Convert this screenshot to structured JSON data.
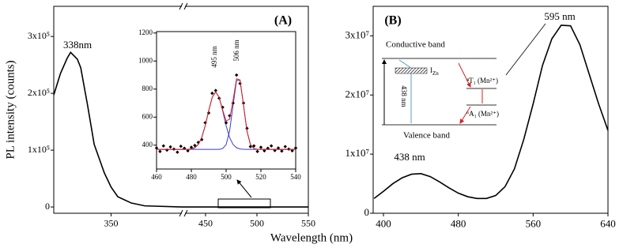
{
  "figure": {
    "y_label": "PL intensity (counts)",
    "x_label": "Wavelength (nm)"
  },
  "chart_data": [
    {
      "type": "line",
      "panel_label": "(A)",
      "xlim_segments": [
        [
          333,
          371
        ],
        [
          430,
          550
        ]
      ],
      "xticks": [
        350,
        450,
        500,
        550
      ],
      "ylim": [
        -11000,
        353000
      ],
      "yticks": [
        0,
        {
          "value": 100000,
          "label": "1x10⁵"
        },
        {
          "value": 200000,
          "label": "2x10⁵"
        },
        {
          "value": 300000,
          "label": "3x10⁵"
        }
      ],
      "annotations": [
        "338nm"
      ],
      "x": [
        333,
        335,
        337,
        338,
        340,
        341,
        343,
        345,
        348,
        350,
        352,
        356,
        360,
        371,
        430,
        450,
        480,
        500,
        520,
        550
      ],
      "values": [
        197000,
        235000,
        262000,
        272000,
        260000,
        245000,
        180000,
        110000,
        60000,
        35000,
        18000,
        7000,
        2000,
        0,
        0,
        0,
        0,
        0,
        0,
        0
      ],
      "color": "#000000"
    },
    {
      "type": "line",
      "xlim": [
        460,
        540
      ],
      "xticks": [
        460,
        480,
        500,
        520,
        540
      ],
      "ylim": [
        230,
        1210
      ],
      "yticks": [
        400,
        600,
        800,
        1000,
        1200
      ],
      "annotations": [
        "495 nm",
        "506 nm"
      ],
      "x": [
        460,
        462,
        464,
        466,
        468,
        470,
        472,
        474,
        476,
        478,
        480,
        482,
        484,
        486,
        488,
        490,
        492,
        494,
        496,
        498,
        500,
        502,
        504,
        506,
        508,
        510,
        512,
        514,
        516,
        518,
        520,
        522,
        524,
        526,
        528,
        530,
        532,
        534,
        536,
        538,
        540
      ],
      "series": [
        {
          "style": "line",
          "color": "#3a3ad0",
          "values": [
            370,
            370,
            370,
            370,
            370,
            370,
            370,
            370,
            370,
            371,
            373,
            382,
            405,
            455,
            539,
            646,
            741,
            780,
            741,
            646,
            539,
            455,
            405,
            382,
            373,
            371,
            370,
            370,
            370,
            370,
            370,
            370,
            370,
            370,
            370,
            370,
            370,
            370,
            370,
            370,
            370
          ]
        },
        {
          "style": "line",
          "color": "#3a3ad0",
          "values": [
            370,
            370,
            370,
            370,
            370,
            370,
            370,
            370,
            370,
            370,
            370,
            370,
            370,
            370,
            370,
            370,
            370,
            370,
            370,
            376,
            404,
            500,
            685,
            862,
            862,
            685,
            500,
            404,
            376,
            371,
            370,
            370,
            370,
            370,
            370,
            370,
            370,
            370,
            370,
            370,
            370
          ]
        },
        {
          "style": "points",
          "color": "#000000",
          "values": [
            380,
            355,
            395,
            365,
            388,
            372,
            350,
            392,
            378,
            360,
            385,
            398,
            420,
            440,
            560,
            630,
            770,
            790,
            735,
            670,
            560,
            610,
            700,
            900,
            840,
            700,
            520,
            390,
            395,
            355,
            385,
            360,
            378,
            395,
            362,
            380,
            358,
            390,
            372,
            360,
            380
          ]
        },
        {
          "style": "line",
          "color": "#d62020",
          "values": [
            370,
            370,
            370,
            370,
            370,
            370,
            370,
            370,
            370,
            371,
            373,
            382,
            405,
            455,
            539,
            646,
            741,
            780,
            742,
            652,
            573,
            585,
            720,
            874,
            865,
            686,
            500,
            404,
            376,
            371,
            370,
            370,
            370,
            370,
            370,
            370,
            370,
            370,
            370,
            370,
            370
          ]
        }
      ]
    },
    {
      "type": "line",
      "panel_label": "(B)",
      "xlim": [
        389,
        640
      ],
      "xticks": [
        400,
        480,
        560,
        640
      ],
      "ylim": [
        0,
        35000000
      ],
      "yticks": [
        0,
        {
          "value": 10000000,
          "label": "1x10⁷"
        },
        {
          "value": 20000000,
          "label": "2x10⁷"
        },
        {
          "value": 30000000,
          "label": "3x10⁷"
        }
      ],
      "annotations": [
        "438 nm",
        "595 nm"
      ],
      "x": [
        390,
        400,
        410,
        420,
        430,
        440,
        450,
        460,
        470,
        480,
        490,
        500,
        510,
        520,
        530,
        540,
        550,
        560,
        570,
        580,
        590,
        600,
        610,
        620,
        630,
        640
      ],
      "values": [
        2500000,
        3700000,
        5000000,
        6000000,
        6600000,
        6700000,
        6200000,
        5300000,
        4300000,
        3400000,
        2800000,
        2500000,
        2500000,
        3000000,
        4500000,
        7500000,
        12500000,
        18500000,
        25000000,
        29500000,
        31800000,
        31700000,
        28500000,
        23500000,
        18500000,
        14000000
      ],
      "color": "#000000"
    }
  ],
  "diagram": {
    "conductive": "Conductive band",
    "valence": "Valence band",
    "transition": "438 nm",
    "defect": {
      "main": "I",
      "sub": "Zn"
    },
    "upper_level": "⁴T₁ (Mn²⁺)",
    "lower_level": "⁶A₁ (Mn²⁺)"
  }
}
